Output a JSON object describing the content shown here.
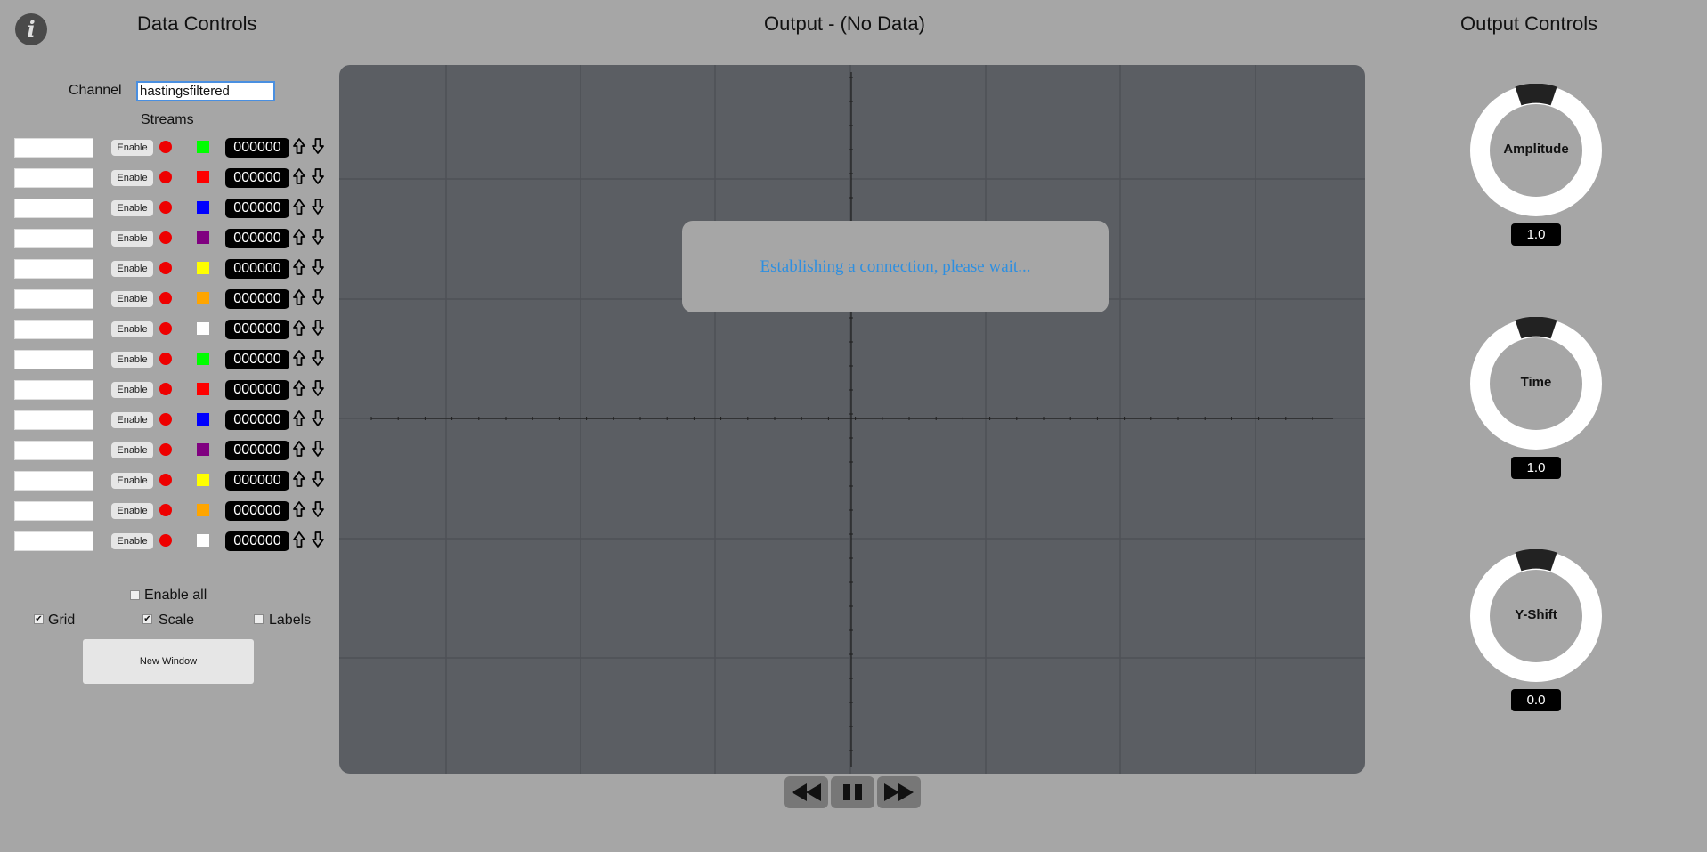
{
  "info_icon": "i",
  "data_controls": {
    "title": "Data Controls",
    "channel_label": "Channel",
    "channel_value": "hastingsfiltered",
    "streams_label": "Streams",
    "streams": [
      {
        "enable": "Enable",
        "swatch": "#00ff00",
        "value": "000000"
      },
      {
        "enable": "Enable",
        "swatch": "#ff0000",
        "value": "000000"
      },
      {
        "enable": "Enable",
        "swatch": "#0000ff",
        "value": "000000"
      },
      {
        "enable": "Enable",
        "swatch": "#800080",
        "value": "000000"
      },
      {
        "enable": "Enable",
        "swatch": "#ffff00",
        "value": "000000"
      },
      {
        "enable": "Enable",
        "swatch": "#ffa500",
        "value": "000000"
      },
      {
        "enable": "Enable",
        "swatch": "#ffffff",
        "value": "000000"
      },
      {
        "enable": "Enable",
        "swatch": "#00ff00",
        "value": "000000"
      },
      {
        "enable": "Enable",
        "swatch": "#ff0000",
        "value": "000000"
      },
      {
        "enable": "Enable",
        "swatch": "#0000ff",
        "value": "000000"
      },
      {
        "enable": "Enable",
        "swatch": "#800080",
        "value": "000000"
      },
      {
        "enable": "Enable",
        "swatch": "#ffff00",
        "value": "000000"
      },
      {
        "enable": "Enable",
        "swatch": "#ffa500",
        "value": "000000"
      },
      {
        "enable": "Enable",
        "swatch": "#ffffff",
        "value": "000000"
      }
    ],
    "status_dot_color": "#ee0000",
    "enable_all_label": "Enable all",
    "enable_all_checked": false,
    "grid_label": "Grid",
    "grid_checked": true,
    "scale_label": "Scale",
    "scale_checked": true,
    "labels_label": "Labels",
    "labels_checked": false,
    "new_window_label": "New Window"
  },
  "output": {
    "title": "Output - (No Data)",
    "modal_text": "Establishing a connection, please wait...",
    "playback": {
      "rewind_icon": "rewind-icon",
      "pause_icon": "pause-icon",
      "forward_icon": "fast-forward-icon"
    }
  },
  "output_controls": {
    "title": "Output Controls",
    "knobs": [
      {
        "label": "Amplitude",
        "value": "1.0"
      },
      {
        "label": "Time",
        "value": "1.0"
      },
      {
        "label": "Y-Shift",
        "value": "0.0"
      }
    ]
  },
  "colors": {
    "background": "#a6a6a6",
    "plot_background": "#5b5e63",
    "modal_text": "#2e8fe0",
    "knob_ring": "#ffffff",
    "knob_marker": "#222222"
  }
}
